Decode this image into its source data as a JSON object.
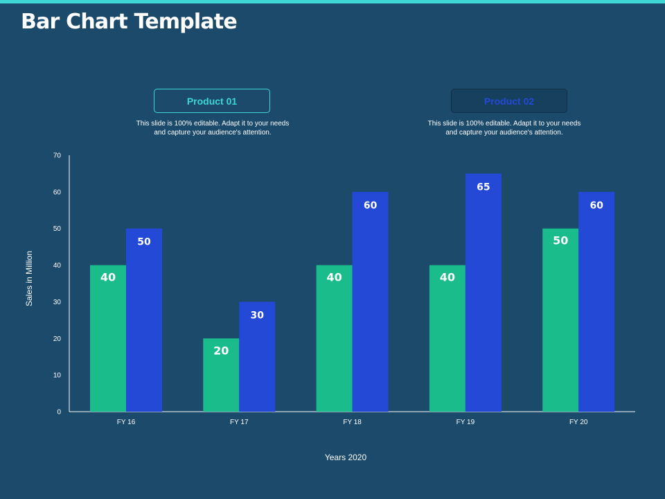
{
  "slide": {
    "title": "Bar Chart Template"
  },
  "legend": [
    {
      "label": "Product 01",
      "description_line1": "This slide is 100% editable.  Adapt it to your needs",
      "description_line2": "and capture your audience's attention."
    },
    {
      "label": "Product 02",
      "description_line1": "This slide is 100% editable.  Adapt it to your needs",
      "description_line2": "and capture your audience's attention."
    }
  ],
  "colors": {
    "background": "#1b4a6b",
    "accent": "#3fd6d6",
    "product_01": "#1abc8c",
    "product_02": "#2449d6"
  },
  "chart_data": {
    "type": "bar",
    "categories": [
      "FY 16",
      "FY 17",
      "FY 18",
      "FY 19",
      "FY 20"
    ],
    "series": [
      {
        "name": "Product 01",
        "values": [
          40,
          20,
          40,
          40,
          50
        ]
      },
      {
        "name": "Product 02",
        "values": [
          50,
          30,
          60,
          65,
          60
        ]
      }
    ],
    "xlabel": "Years 2020",
    "ylabel": "Sales in Million",
    "ylim": [
      0,
      70
    ],
    "yticks": [
      0,
      10,
      20,
      30,
      40,
      50,
      60,
      70
    ],
    "grid": false,
    "legend_placement": "top"
  }
}
